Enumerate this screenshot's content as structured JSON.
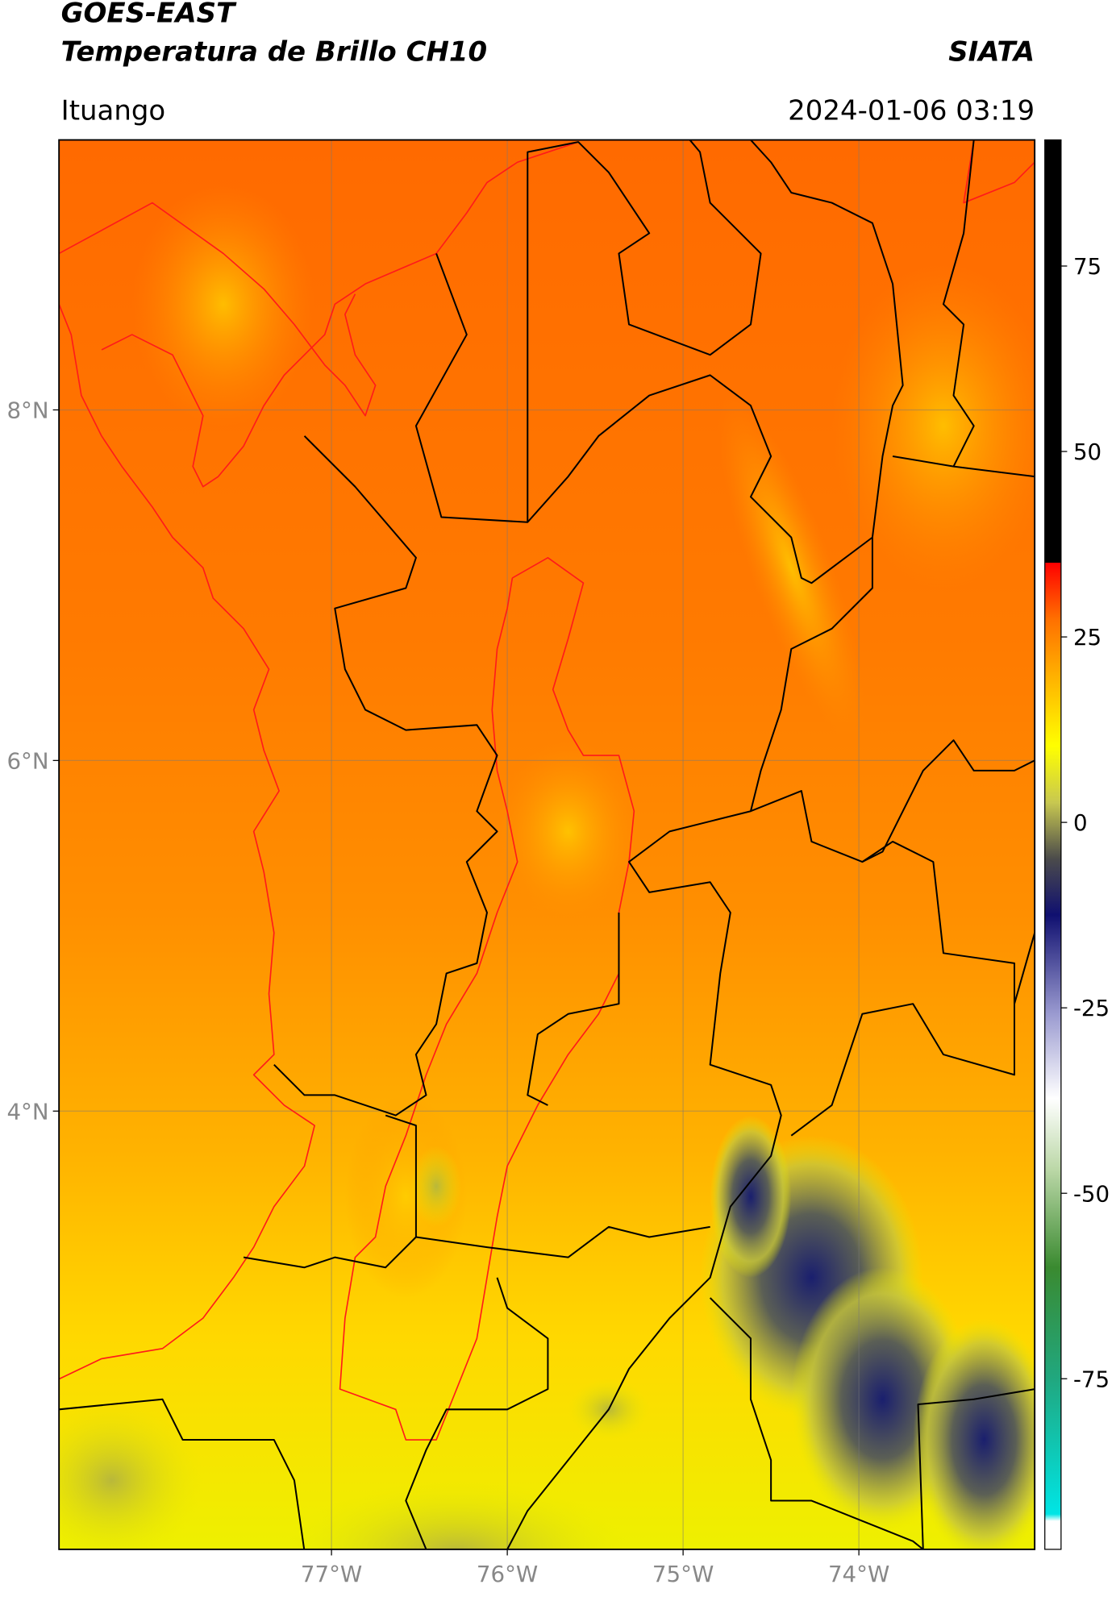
{
  "header": {
    "title_line1": "GOES-EAST",
    "title_line2": "Temperatura de Brillo CH10",
    "source": "SIATA",
    "location": "Ituango",
    "timestamp": "2024-01-06 03:19"
  },
  "map": {
    "xlim": [
      -78.55,
      -73.0
    ],
    "ylim": [
      1.5,
      9.54
    ],
    "lat_ticks": [
      {
        "value": 8,
        "label": "8°N"
      },
      {
        "value": 6,
        "label": "6°N"
      },
      {
        "value": 4,
        "label": "4°N"
      }
    ],
    "lon_ticks": [
      {
        "value": -77,
        "label": "77°W"
      },
      {
        "value": -76,
        "label": "76°W"
      },
      {
        "value": -75,
        "label": "75°W"
      },
      {
        "value": -74,
        "label": "74°W"
      }
    ]
  },
  "colorbar": {
    "range": [
      -98,
      92
    ],
    "ticks": [
      75,
      50,
      25,
      0,
      -25,
      -50,
      -75
    ]
  }
}
